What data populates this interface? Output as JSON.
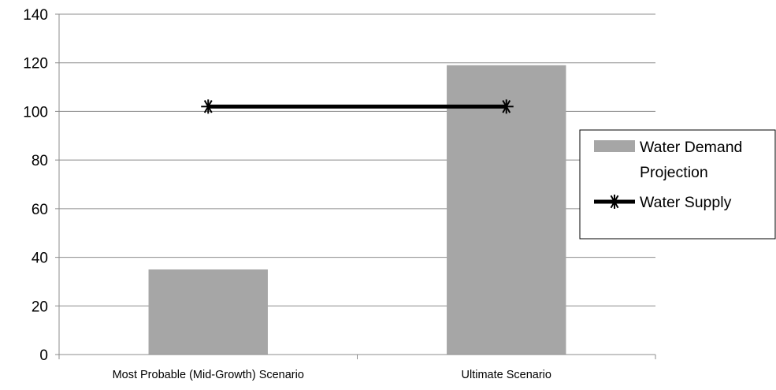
{
  "chart_data": {
    "type": "bar",
    "categories": [
      "Most Probable (Mid-Growth) Scenario",
      "Ultimate Scenario"
    ],
    "series": [
      {
        "name": "Water Demand Projection",
        "type": "bar",
        "values": [
          35,
          119
        ],
        "color": "#a6a6a6"
      },
      {
        "name": "Water Supply",
        "type": "line",
        "values": [
          102,
          102
        ],
        "color": "#000000",
        "marker": "star"
      }
    ],
    "yticks": [
      "0",
      "20",
      "40",
      "60",
      "80",
      "100",
      "120",
      "140"
    ],
    "ylim": [
      0,
      140
    ],
    "grid": true,
    "legend_position": "right",
    "legend": {
      "demand_line1": "Water Demand",
      "demand_line2": "Projection",
      "supply": "Water Supply"
    }
  }
}
